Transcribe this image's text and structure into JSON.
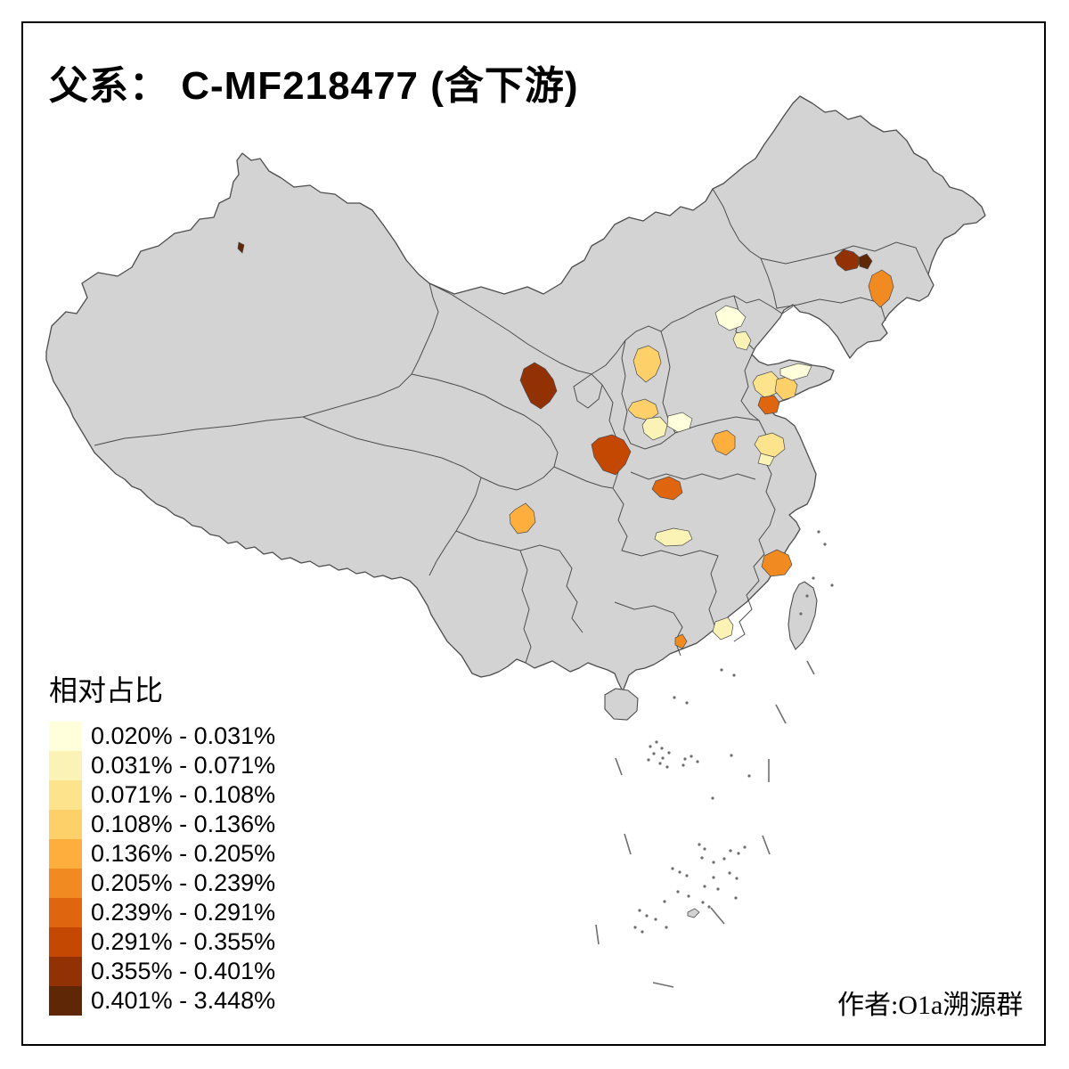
{
  "title": "父系： C-MF218477 (含下游)",
  "attribution": "作者:O1a溯源群",
  "legend": {
    "title": "相对占比",
    "bins": [
      {
        "range": "0.020% - 0.031%",
        "color": "#FFFFDC"
      },
      {
        "range": "0.031% - 0.071%",
        "color": "#FBF2B6"
      },
      {
        "range": "0.071% - 0.108%",
        "color": "#FDE38C"
      },
      {
        "range": "0.108% - 0.136%",
        "color": "#FDD069"
      },
      {
        "range": "0.136% - 0.205%",
        "color": "#FDAE3D"
      },
      {
        "range": "0.205% - 0.239%",
        "color": "#F28A22"
      },
      {
        "range": "0.239% - 0.291%",
        "color": "#E0650F"
      },
      {
        "range": "0.291% - 0.355%",
        "color": "#C44702"
      },
      {
        "range": "0.355% - 0.401%",
        "color": "#913104"
      },
      {
        "range": "0.401% - 3.448%",
        "color": "#5F2706"
      }
    ]
  },
  "map": {
    "base_fill": "#D3D3D3",
    "boundary_color": "#4D4D4D",
    "sea_fill": "#FFFFFF",
    "island_dot_color": "#6E6E6E"
  },
  "chart_data": {
    "type": "choropleth",
    "title": "父系： C-MF218477 (含下游)",
    "legend_title": "相对占比",
    "geography": "China, prefecture-level units on province outline map",
    "bins": [
      "0.020% - 0.031%",
      "0.031% - 0.071%",
      "0.071% - 0.108%",
      "0.108% - 0.136%",
      "0.136% - 0.205%",
      "0.205% - 0.239%",
      "0.239% - 0.291%",
      "0.291% - 0.355%",
      "0.355% - 0.401%",
      "0.401% - 3.448%"
    ],
    "regions": [
      {
        "area": "Xinjiang north-central (tiny spot)",
        "bin": 10
      },
      {
        "area": "Gansu central",
        "bin": 9
      },
      {
        "area": "Jilin west",
        "bin": 9
      },
      {
        "area": "Jilin central (small)",
        "bin": 10
      },
      {
        "area": "Jilin southeast",
        "bin": 6
      },
      {
        "area": "Beijing",
        "bin": 1
      },
      {
        "area": "Tianjin vicinity",
        "bin": 2
      },
      {
        "area": "Shanxi central-north",
        "bin": 4
      },
      {
        "area": "Shanxi south",
        "bin": 4
      },
      {
        "area": "Shanxi southeast",
        "bin": 2
      },
      {
        "area": "Hebei south",
        "bin": 1
      },
      {
        "area": "Shaanxi Guanzhong (Xi'an area)",
        "bin": 8
      },
      {
        "area": "Henan north-central (Zhengzhou area)",
        "bin": 5
      },
      {
        "area": "Jiangsu northwest",
        "bin": 3
      },
      {
        "area": "Jiangsu northwest (south part)",
        "bin": 2
      },
      {
        "area": "Shandong west-central",
        "bin": 3
      },
      {
        "area": "Shandong central-east",
        "bin": 4
      },
      {
        "area": "Shandong peninsula north",
        "bin": 1
      },
      {
        "area": "Shandong south coast",
        "bin": 7
      },
      {
        "area": "Hubei northwest",
        "bin": 7
      },
      {
        "area": "Hubei southwest",
        "bin": 2
      },
      {
        "area": "Sichuan south-central",
        "bin": 5
      },
      {
        "area": "Zhejiang coastal southeast",
        "bin": 6
      },
      {
        "area": "Guangdong east-inland",
        "bin": 2
      },
      {
        "area": "Guangdong Pearl River delta (small)",
        "bin": 6
      }
    ]
  }
}
